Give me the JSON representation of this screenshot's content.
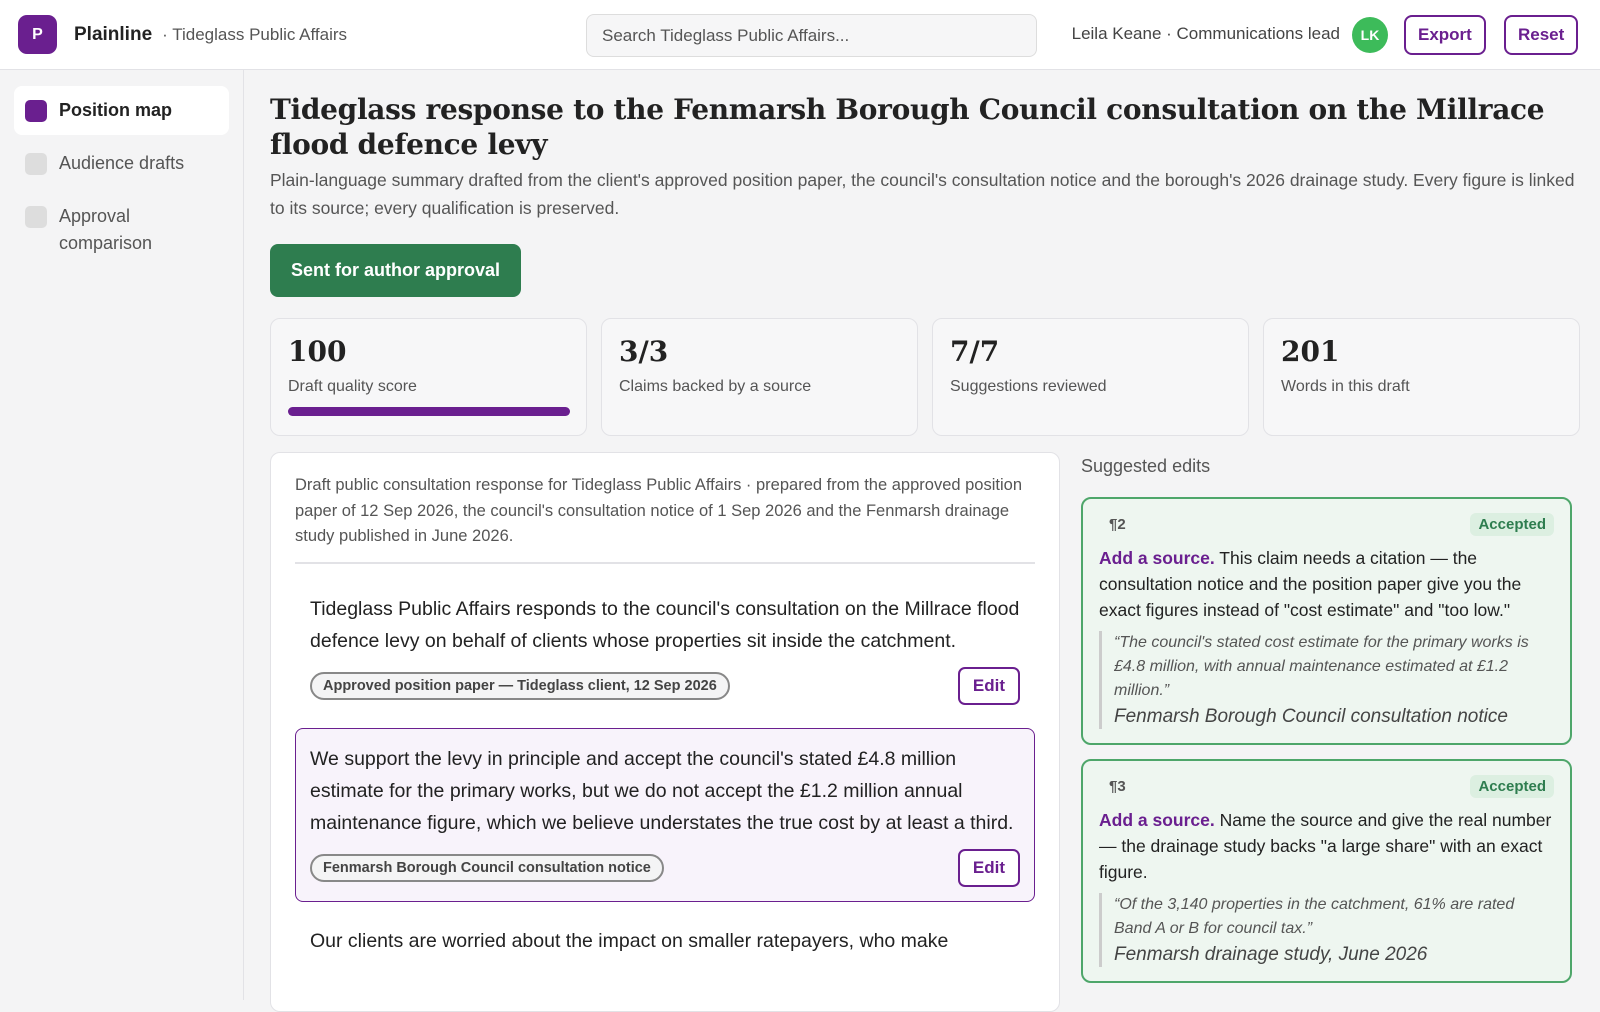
{
  "header": {
    "logo": "P",
    "app_name": "Plainline",
    "workspace": "· Tideglass Public Affairs",
    "search_placeholder": "Search Tideglass Public Affairs...",
    "user": "Leila Keane · Communications lead",
    "avatar": "LK",
    "buttons": [
      "Export",
      "Reset"
    ]
  },
  "sidebar": {
    "items": [
      "Position map",
      "Audience drafts",
      "Approval comparison"
    ]
  },
  "main": {
    "title": "Tideglass response to the Fenmarsh Borough Council consultation on the Millrace flood defence levy",
    "subtitle": "Plain-language summary drafted from the client's approved position paper, the council's consultation notice and the borough's 2026 drainage study. Every figure is linked to its source; every qualification is preserved.",
    "status_button": "Sent for author approval",
    "stats": [
      {
        "value": "100",
        "label": "Draft quality score"
      },
      {
        "value": "3/3",
        "label": "Claims backed by a source"
      },
      {
        "value": "7/7",
        "label": "Suggestions reviewed"
      },
      {
        "value": "201",
        "label": "Words in this draft"
      }
    ],
    "draft": {
      "intro": "Draft public consultation response for Tideglass Public Affairs · prepared from the approved position paper of 12 Sep 2026, the council's consultation notice of 1 Sep 2026 and the Fenmarsh drainage study published in June 2026.",
      "paragraphs": [
        {
          "text": "Tideglass Public Affairs responds to the council's consultation on the Millrace flood defence levy on behalf of clients whose properties sit inside the catchment.",
          "source": "Approved position paper — Tideglass client, 12 Sep 2026",
          "edit": "Edit"
        },
        {
          "text": "We support the levy in principle and accept the council's stated £4.8 million estimate for the primary works, but we do not accept the £1.2 million annual maintenance figure, which we believe understates the true cost by at least a third.",
          "source": "Fenmarsh Borough Council consultation notice",
          "edit": "Edit"
        },
        {
          "text": "Our clients are worried about the impact on smaller ratepayers, who make"
        }
      ]
    },
    "suggestions": {
      "heading": "Suggested edits",
      "items": [
        {
          "paragraph": "¶2",
          "status": "Accepted",
          "action": "Add a source.",
          "text": "This claim needs a citation — the consultation notice and the position paper give you the exact figures instead of \"cost estimate\" and \"too low.\"",
          "quote": "“The council's stated cost estimate for the primary works is £4.8 million, with annual maintenance estimated at £1.2 million.”",
          "source": "Fenmarsh Borough Council consultation notice"
        },
        {
          "paragraph": "¶3",
          "status": "Accepted",
          "action": "Add a source.",
          "text": "Name the source and give the real number — the drainage study backs \"a large share\" with an exact figure.",
          "quote": "“Of the 3,140 properties in the catchment, 61% are rated Band A or B for council tax.”",
          "source": "Fenmarsh drainage study, June 2026"
        }
      ]
    }
  }
}
